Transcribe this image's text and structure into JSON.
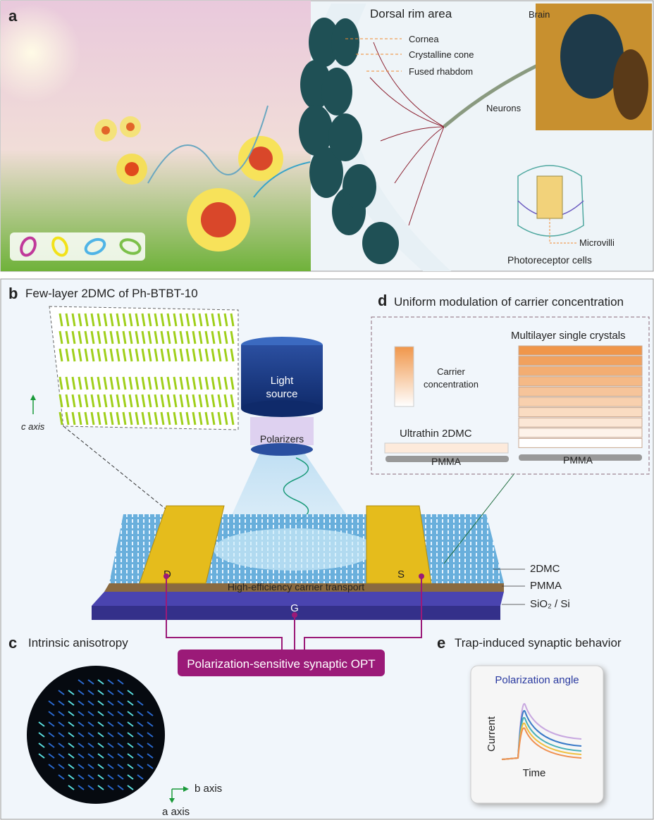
{
  "panel_a": {
    "label": "a",
    "title": "Dorsal rim area",
    "callouts": [
      "Cornea",
      "Crystalline cone",
      "Fused rhabdom"
    ],
    "brain": "Brain",
    "neurons": "Neurons",
    "microvilli": "Microvilli",
    "photoreceptor": "Photoreceptor cells",
    "polarization_icons": [
      "#c0399a",
      "#f2e21a",
      "#4fb4e6",
      "#7cc04a"
    ]
  },
  "panel_b": {
    "label": "b",
    "title": "Few-layer 2DMC of Ph-BTBT-10",
    "c_axis": "c axis",
    "light_source": [
      "Light",
      "source"
    ],
    "polarizers": "Polarizers",
    "drain": "D",
    "source": "S",
    "gate": "G",
    "transport": "High-efficiency carrier transport",
    "layers": [
      "2DMC",
      "PMMA",
      "SiO₂ / Si"
    ],
    "device": "Polarization-sensitive synaptic OPT"
  },
  "panel_c": {
    "label": "c",
    "title": "Intrinsic anisotropy",
    "b_axis": "b axis",
    "a_axis": "a axis"
  },
  "panel_d": {
    "label": "d",
    "title": "Uniform modulation of carrier concentration",
    "multilayer": "Multilayer single crystals",
    "carrier": [
      "Carrier",
      "concentration"
    ],
    "ultrathin": "Ultrathin 2DMC",
    "pmma_left": "PMMA",
    "pmma_right": "PMMA"
  },
  "panel_e": {
    "label": "e",
    "title": "Trap-induced synaptic behavior",
    "inset_title": "Polarization angle",
    "ylabel": "Current",
    "xlabel": "Time"
  },
  "colors": {
    "accent": "#9b1a78",
    "gold": "#e8c020",
    "orange": "#f0964a",
    "substrate": "#3d3a9a"
  }
}
